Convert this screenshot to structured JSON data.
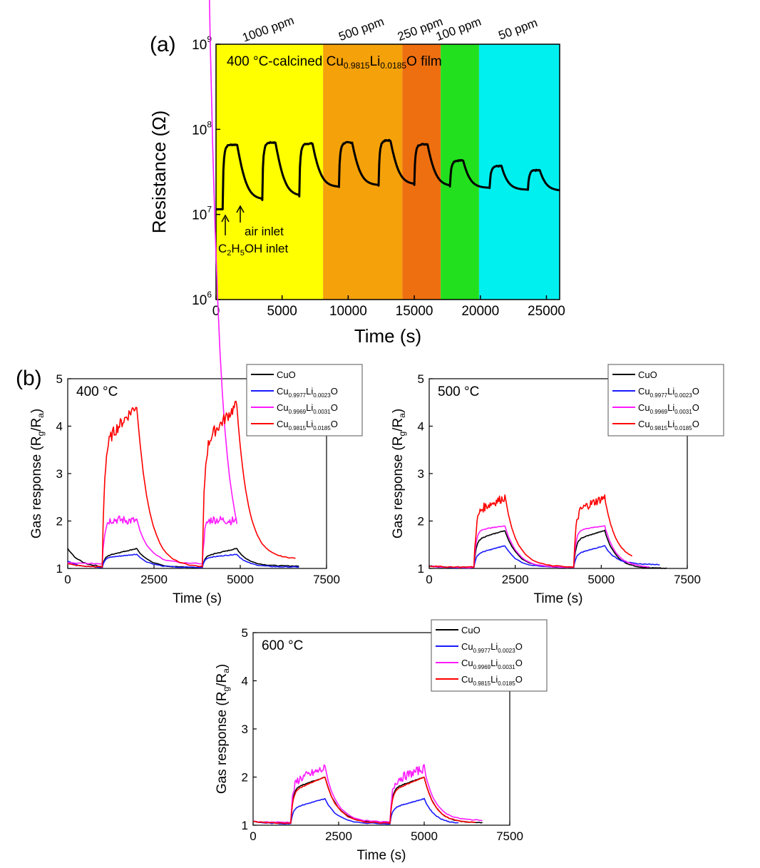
{
  "figure": {
    "panel_a_label": "(a)",
    "panel_b_label": "(b)"
  },
  "chart_data": [
    {
      "id": "a",
      "type": "line",
      "yscale": "log",
      "xlabel": "Time (s)",
      "ylabel": "Resistance (Ω)",
      "xlim": [
        0,
        26000
      ],
      "ylim": [
        1000000,
        1000000000
      ],
      "xticks": [
        "0",
        "5000",
        "10000",
        "15000",
        "20000",
        "25000"
      ],
      "yticks": [
        {
          "base": "10",
          "exp": "6",
          "value": 1000000
        },
        {
          "base": "10",
          "exp": "7",
          "value": 10000000
        },
        {
          "base": "10",
          "exp": "8",
          "value": 100000000
        },
        {
          "base": "10",
          "exp": "9",
          "value": 1000000000
        }
      ],
      "title_parts": [
        "400 °C-calcined Cu",
        "0.9815",
        "Li",
        "0.0185",
        "O film"
      ],
      "regions": [
        {
          "label": "1000 ppm",
          "x0": 0,
          "x1": 8100,
          "color": "#ffff00"
        },
        {
          "label": "500 ppm",
          "x0": 8100,
          "x1": 14100,
          "color": "#f5a10a"
        },
        {
          "label": "250 ppm",
          "x0": 14100,
          "x1": 17000,
          "color": "#ee6f10"
        },
        {
          "label": "100 ppm",
          "x0": 17000,
          "x1": 19900,
          "color": "#22e01e"
        },
        {
          "label": "50 ppm",
          "x0": 19900,
          "x1": 26000,
          "color": "#00f0f0"
        }
      ],
      "annotations": {
        "ethanol_parts": [
          "C",
          "2",
          "H",
          "5",
          "OH inlet"
        ],
        "air_parts": [
          "",
          "air inlet"
        ]
      },
      "cycles": [
        {
          "on": 500,
          "off": 1600,
          "base_start": 11500000,
          "peak": 66000000,
          "base_end": 15000000
        },
        {
          "on": 3500,
          "off": 4500,
          "base_start": 15000000,
          "peak": 70000000,
          "base_end": 16500000
        },
        {
          "on": 6300,
          "off": 7300,
          "base_start": 16500000,
          "peak": 68000000,
          "base_end": 21000000
        },
        {
          "on": 9300,
          "off": 10300,
          "base_start": 21000000,
          "peak": 70000000,
          "base_end": 22000000
        },
        {
          "on": 12300,
          "off": 13200,
          "base_start": 22000000,
          "peak": 74000000,
          "base_end": 22500000
        },
        {
          "on": 15000,
          "off": 16000,
          "base_start": 22500000,
          "peak": 67000000,
          "base_end": 21500000
        },
        {
          "on": 17700,
          "off": 18700,
          "base_start": 21500000,
          "peak": 43000000,
          "base_end": 20500000
        },
        {
          "on": 20700,
          "off": 21600,
          "base_start": 20500000,
          "peak": 37000000,
          "base_end": 19500000
        },
        {
          "on": 23600,
          "off": 24500,
          "base_start": 19500000,
          "peak": 33000000,
          "base_end": 19000000
        }
      ],
      "end_value": 19000000
    },
    {
      "id": "b400",
      "type": "line",
      "label": "400 °C",
      "xlabel": "Time (s)",
      "ylabel_parts": [
        "Gas response (R",
        "g",
        "/R",
        "a",
        ")"
      ],
      "xlim": [
        0,
        7500
      ],
      "ylim": [
        1,
        5
      ],
      "xticks": [
        "0",
        "2500",
        "5000",
        "7500"
      ],
      "yticks": [
        "1",
        "2",
        "3",
        "4",
        "5"
      ],
      "pulses": [
        [
          1000,
          2000
        ],
        [
          3900,
          4900
        ]
      ],
      "series": [
        {
          "name_parts": [
            "CuO"
          ],
          "color": "#000000",
          "start": 1.42,
          "rest": 1.02,
          "peak_start": 1.25,
          "peak_end": 1.42,
          "end": 6700,
          "tail": 1.05
        },
        {
          "name_parts": [
            "Cu",
            "0.9977",
            "Li",
            "0.0023",
            "O"
          ],
          "color": "#1a1aff",
          "start": 1.15,
          "rest": 1.02,
          "peak_start": 1.22,
          "peak_end": 1.3,
          "end": 6700,
          "tail": 1.03
        },
        {
          "name_parts": [
            "Cu",
            "0.9969",
            "Li",
            "0.0031",
            "O"
          ],
          "color": "#ff1aff",
          "start": 1.12,
          "rest": 1.1,
          "peak_start": 2.05,
          "peak_end": 2.0,
          "end": 2100,
          "tail": 1.0
        },
        {
          "name_parts": [
            "Cu",
            "0.9815",
            "Li",
            "0.0185",
            "O"
          ],
          "color": "#ff0000",
          "start": 1.1,
          "rest": 1.03,
          "peak_start": 3.6,
          "peak_end": 4.45,
          "end": 6600,
          "tail": 1.2
        }
      ]
    },
    {
      "id": "b500",
      "type": "line",
      "label": "500 °C",
      "xlabel": "Time (s)",
      "ylabel_parts": [
        "Gas response (R",
        "g",
        "/R",
        "a",
        ")"
      ],
      "xlim": [
        0,
        7500
      ],
      "ylim": [
        1,
        5
      ],
      "xticks": [
        "0",
        "2500",
        "5000",
        "7500"
      ],
      "yticks": [
        "1",
        "2",
        "3",
        "4",
        "5"
      ],
      "pulses": [
        [
          1300,
          2200
        ],
        [
          4200,
          5100
        ]
      ],
      "series": [
        {
          "name_parts": [
            "CuO"
          ],
          "color": "#000000",
          "start": 1.05,
          "rest": 1.02,
          "peak_start": 1.6,
          "peak_end": 1.8,
          "end": 6900,
          "tail": 1.0
        },
        {
          "name_parts": [
            "Cu",
            "0.9977",
            "Li",
            "0.0023",
            "O"
          ],
          "color": "#1a1aff",
          "start": 1.05,
          "rest": 1.02,
          "peak_start": 1.3,
          "peak_end": 1.48,
          "end": 6700,
          "tail": 1.08
        },
        {
          "name_parts": [
            "Cu",
            "0.9969",
            "Li",
            "0.0031",
            "O"
          ],
          "color": "#ff1aff",
          "start": 1.05,
          "rest": 1.02,
          "peak_start": 1.8,
          "peak_end": 1.9,
          "end": 6400,
          "tail": 1.02
        },
        {
          "name_parts": [
            "Cu",
            "0.9815",
            "Li",
            "0.0185",
            "O"
          ],
          "color": "#ff0000",
          "start": 1.05,
          "rest": 1.03,
          "peak_start": 2.2,
          "peak_end": 2.5,
          "end": 5900,
          "tail": 1.15
        }
      ]
    },
    {
      "id": "b600",
      "type": "line",
      "label": "600 °C",
      "xlabel": "Time (s)",
      "ylabel_parts": [
        "Gas response (R",
        "g",
        "/R",
        "a",
        ")"
      ],
      "xlim": [
        0,
        7500
      ],
      "ylim": [
        1,
        5
      ],
      "xticks": [
        "0",
        "2500",
        "5000",
        "7500"
      ],
      "yticks": [
        "1",
        "2",
        "3",
        "4",
        "5"
      ],
      "pulses": [
        [
          1100,
          2100
        ],
        [
          4000,
          5000
        ]
      ],
      "series": [
        {
          "name_parts": [
            "CuO"
          ],
          "color": "#000000",
          "start": 1.08,
          "rest": 1.05,
          "peak_start": 1.75,
          "peak_end": 2.0,
          "end": 6700,
          "tail": 1.05
        },
        {
          "name_parts": [
            "Cu",
            "0.9977",
            "Li",
            "0.0023",
            "O"
          ],
          "color": "#1a1aff",
          "start": 1.08,
          "rest": 1.03,
          "peak_start": 1.35,
          "peak_end": 1.55,
          "end": 6000,
          "tail": 1.02
        },
        {
          "name_parts": [
            "Cu",
            "0.9969",
            "Li",
            "0.0031",
            "O"
          ],
          "color": "#ff1aff",
          "start": 1.08,
          "rest": 1.06,
          "peak_start": 1.9,
          "peak_end": 2.18,
          "end": 6700,
          "tail": 1.1
        },
        {
          "name_parts": [
            "Cu",
            "0.9815",
            "Li",
            "0.0185",
            "O"
          ],
          "color": "#ff0000",
          "start": 1.08,
          "rest": 1.04,
          "peak_start": 1.7,
          "peak_end": 2.0,
          "end": 6500,
          "tail": 1.05
        }
      ]
    }
  ]
}
